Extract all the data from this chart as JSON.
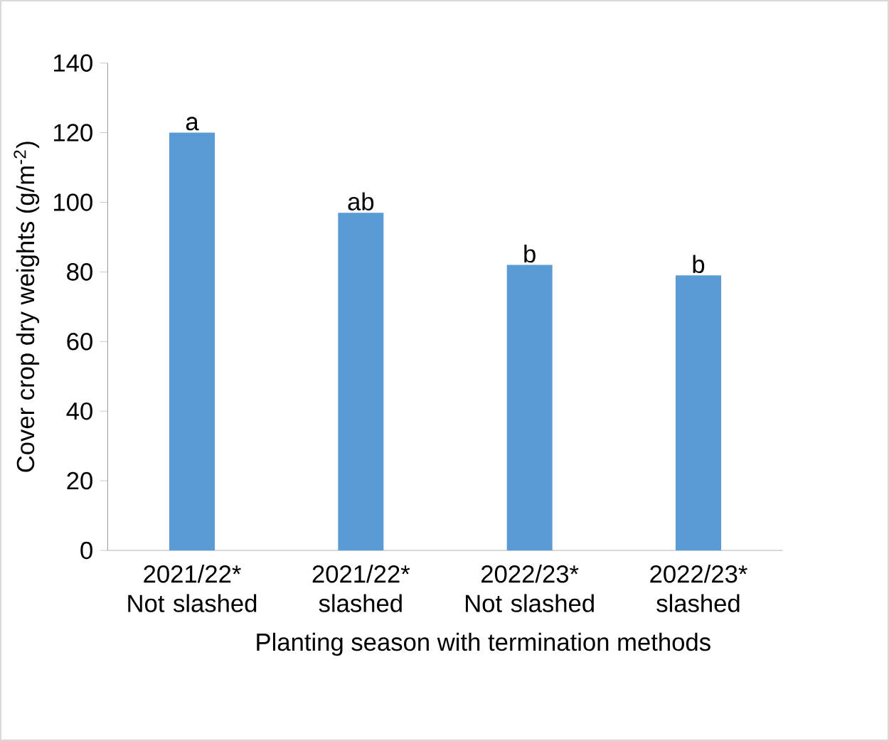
{
  "chart_data": {
    "type": "bar",
    "xlabel": "Planting season with termination methods",
    "ylabel": "Cover crop dry weights (g/m$^{-2}$)",
    "categories": [
      "2021/22* Not slashed",
      "2021/22* slashed",
      "2022/23* Not slashed",
      "2022/23* slashed"
    ],
    "values": [
      120,
      97,
      82,
      79
    ],
    "value_labels": [
      "a",
      "ab",
      "b",
      "b"
    ],
    "color": "#5b9bd5",
    "ylim": [
      0,
      140
    ],
    "yticks": [
      0,
      20,
      40,
      60,
      80,
      100,
      120,
      140
    ],
    "grid": false
  }
}
